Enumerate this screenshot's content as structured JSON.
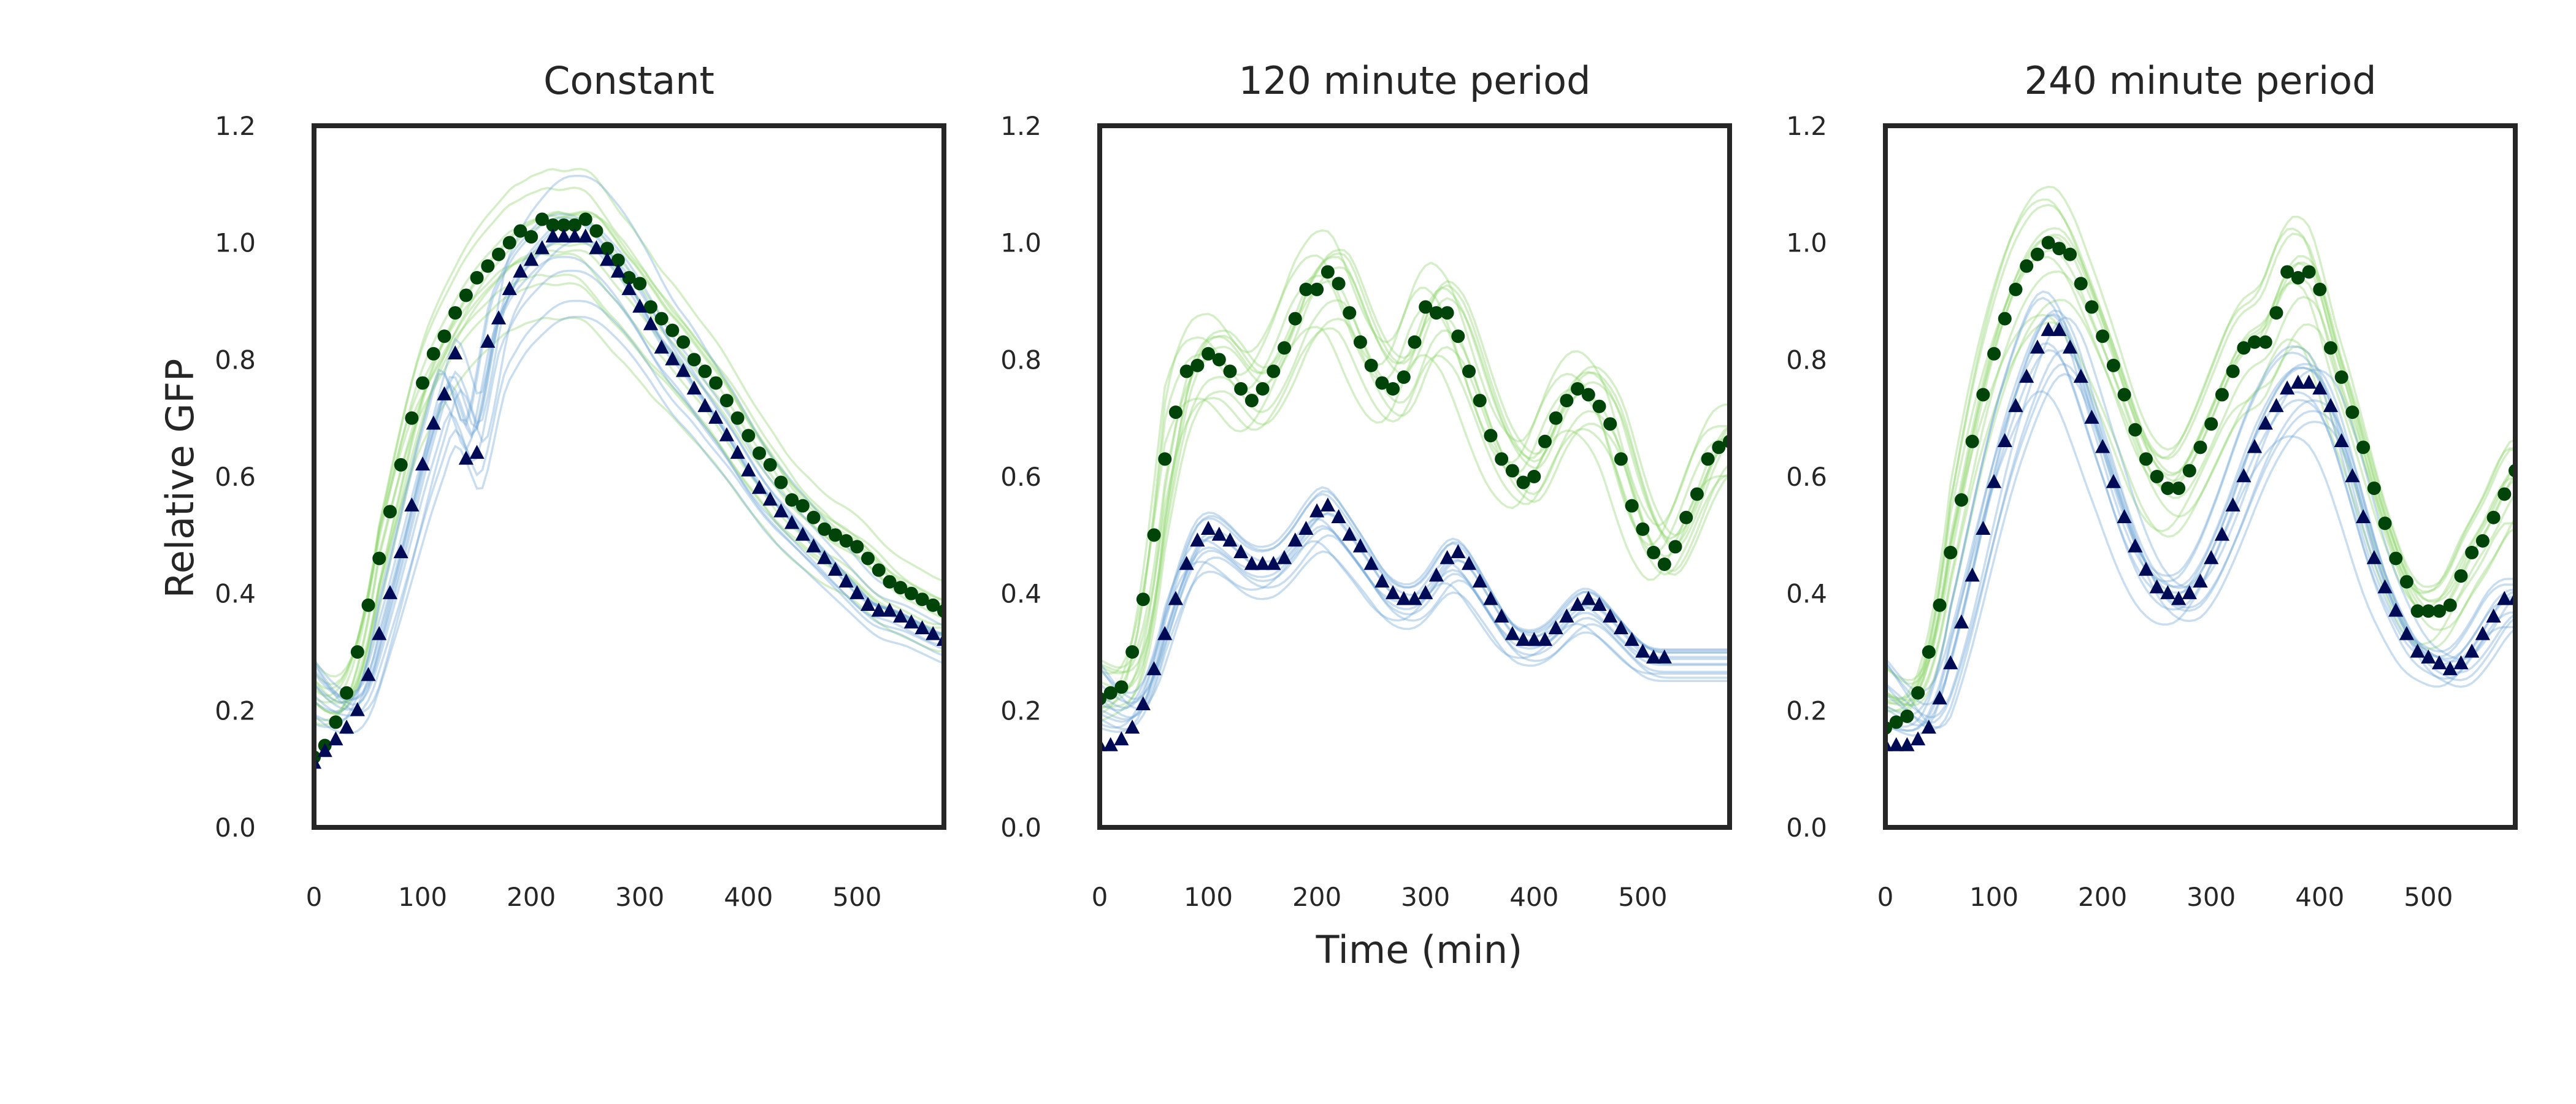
{
  "figure": {
    "xlabel": "Time (min)",
    "ylabel": "Relative GFP"
  },
  "chart_data": [
    {
      "type": "line",
      "title": "Constant",
      "xlim": [
        0,
        580
      ],
      "ylim": [
        0.0,
        1.2
      ],
      "xticks": [
        "0",
        "100",
        "200",
        "300",
        "400",
        "500"
      ],
      "yticks": [
        "0.0",
        "0.2",
        "0.4",
        "0.6",
        "0.8",
        "1.0",
        "1.2"
      ],
      "grid": false,
      "series": [
        {
          "marker": "circle",
          "color": "#00440a",
          "x": [
            0,
            10,
            20,
            30,
            40,
            50,
            60,
            70,
            80,
            90,
            100,
            110,
            120,
            130,
            140,
            150,
            160,
            170,
            180,
            190,
            200,
            210,
            220,
            230,
            240,
            250,
            260,
            270,
            280,
            290,
            300,
            310,
            320,
            330,
            340,
            350,
            360,
            370,
            380,
            390,
            400,
            410,
            420,
            430,
            440,
            450,
            460,
            470,
            480,
            490,
            500,
            510,
            520,
            530,
            540,
            550,
            560,
            570,
            580
          ],
          "y": [
            0.12,
            0.14,
            0.18,
            0.23,
            0.3,
            0.38,
            0.46,
            0.54,
            0.62,
            0.7,
            0.76,
            0.81,
            0.84,
            0.88,
            0.91,
            0.94,
            0.96,
            0.98,
            1.0,
            1.02,
            1.01,
            1.04,
            1.03,
            1.03,
            1.03,
            1.04,
            1.02,
            0.99,
            0.97,
            0.94,
            0.93,
            0.89,
            0.87,
            0.85,
            0.83,
            0.8,
            0.78,
            0.76,
            0.73,
            0.7,
            0.67,
            0.64,
            0.62,
            0.59,
            0.56,
            0.55,
            0.53,
            0.51,
            0.5,
            0.49,
            0.48,
            0.46,
            0.44,
            0.42,
            0.41,
            0.4,
            0.39,
            0.38,
            0.37
          ]
        },
        {
          "marker": "triangle",
          "color": "#000a55",
          "x": [
            0,
            10,
            20,
            30,
            40,
            50,
            60,
            70,
            80,
            90,
            100,
            110,
            120,
            130,
            140,
            150,
            160,
            170,
            180,
            190,
            200,
            210,
            220,
            230,
            240,
            250,
            260,
            270,
            280,
            290,
            300,
            310,
            320,
            330,
            340,
            350,
            360,
            370,
            380,
            390,
            400,
            410,
            420,
            430,
            440,
            450,
            460,
            470,
            480,
            490,
            500,
            510,
            520,
            530,
            540,
            550,
            560,
            570,
            580
          ],
          "y": [
            0.11,
            0.13,
            0.15,
            0.17,
            0.2,
            0.26,
            0.33,
            0.4,
            0.47,
            0.55,
            0.62,
            0.69,
            0.74,
            0.81,
            0.63,
            0.64,
            0.83,
            0.87,
            0.92,
            0.95,
            0.97,
            0.99,
            1.01,
            1.01,
            1.01,
            1.01,
            0.99,
            0.97,
            0.95,
            0.92,
            0.89,
            0.86,
            0.82,
            0.8,
            0.78,
            0.75,
            0.72,
            0.7,
            0.67,
            0.64,
            0.61,
            0.58,
            0.56,
            0.54,
            0.52,
            0.5,
            0.48,
            0.46,
            0.44,
            0.42,
            0.4,
            0.38,
            0.37,
            0.37,
            0.36,
            0.35,
            0.34,
            0.33,
            0.32
          ]
        }
      ]
    },
    {
      "type": "line",
      "title": "120 minute period",
      "xlim": [
        0,
        580
      ],
      "ylim": [
        0.0,
        1.2
      ],
      "xticks": [
        "0",
        "100",
        "200",
        "300",
        "400",
        "500"
      ],
      "yticks": [
        "0.0",
        "0.2",
        "0.4",
        "0.6",
        "0.8",
        "1.0",
        "1.2"
      ],
      "grid": false,
      "series": [
        {
          "marker": "circle",
          "color": "#00440a",
          "x": [
            0,
            10,
            20,
            30,
            40,
            50,
            60,
            70,
            80,
            90,
            100,
            110,
            120,
            130,
            140,
            150,
            160,
            170,
            180,
            190,
            200,
            210,
            220,
            230,
            240,
            250,
            260,
            270,
            280,
            290,
            300,
            310,
            320,
            330,
            340,
            350,
            360,
            370,
            380,
            390,
            400,
            410,
            420,
            430,
            440,
            450,
            460,
            470,
            480,
            490,
            500,
            510,
            520,
            530,
            540,
            550,
            560,
            570,
            580
          ],
          "y": [
            0.22,
            0.23,
            0.24,
            0.3,
            0.39,
            0.5,
            0.63,
            0.71,
            0.78,
            0.79,
            0.81,
            0.8,
            0.78,
            0.75,
            0.73,
            0.75,
            0.78,
            0.82,
            0.87,
            0.92,
            0.92,
            0.95,
            0.93,
            0.88,
            0.83,
            0.79,
            0.76,
            0.75,
            0.77,
            0.83,
            0.89,
            0.88,
            0.88,
            0.84,
            0.78,
            0.73,
            0.67,
            0.63,
            0.61,
            0.59,
            0.6,
            0.66,
            0.7,
            0.73,
            0.75,
            0.74,
            0.72,
            0.69,
            0.63,
            0.55,
            0.51,
            0.47,
            0.45,
            0.48,
            0.53,
            0.57,
            0.63,
            0.65,
            0.66
          ]
        },
        {
          "marker": "triangle",
          "color": "#000a55",
          "x": [
            0,
            10,
            20,
            30,
            40,
            50,
            60,
            70,
            80,
            90,
            100,
            110,
            120,
            130,
            140,
            150,
            160,
            170,
            180,
            190,
            200,
            210,
            220,
            230,
            240,
            250,
            260,
            270,
            280,
            290,
            300,
            310,
            320,
            330,
            340,
            350,
            360,
            370,
            380,
            390,
            400,
            410,
            420,
            430,
            440,
            450,
            460,
            470,
            480,
            490,
            500,
            510,
            520
          ],
          "y": [
            0.14,
            0.14,
            0.15,
            0.17,
            0.21,
            0.27,
            0.33,
            0.39,
            0.45,
            0.49,
            0.51,
            0.5,
            0.49,
            0.47,
            0.45,
            0.45,
            0.45,
            0.46,
            0.49,
            0.51,
            0.54,
            0.55,
            0.53,
            0.5,
            0.48,
            0.45,
            0.42,
            0.4,
            0.39,
            0.39,
            0.4,
            0.43,
            0.46,
            0.47,
            0.45,
            0.42,
            0.39,
            0.36,
            0.33,
            0.32,
            0.32,
            0.32,
            0.34,
            0.36,
            0.38,
            0.39,
            0.38,
            0.36,
            0.34,
            0.32,
            0.3,
            0.29,
            0.29
          ]
        }
      ]
    },
    {
      "type": "line",
      "title": "240 minute period",
      "xlim": [
        0,
        580
      ],
      "ylim": [
        0.0,
        1.2
      ],
      "xticks": [
        "0",
        "100",
        "200",
        "300",
        "400",
        "500"
      ],
      "yticks": [
        "0.0",
        "0.2",
        "0.4",
        "0.6",
        "0.8",
        "1.0",
        "1.2"
      ],
      "grid": false,
      "series": [
        {
          "marker": "circle",
          "color": "#00440a",
          "x": [
            0,
            10,
            20,
            30,
            40,
            50,
            60,
            70,
            80,
            90,
            100,
            110,
            120,
            130,
            140,
            150,
            160,
            170,
            180,
            190,
            200,
            210,
            220,
            230,
            240,
            250,
            260,
            270,
            280,
            290,
            300,
            310,
            320,
            330,
            340,
            350,
            360,
            370,
            380,
            390,
            400,
            410,
            420,
            430,
            440,
            450,
            460,
            470,
            480,
            490,
            500,
            510,
            520,
            530,
            540,
            550,
            560,
            570,
            580
          ],
          "y": [
            0.17,
            0.18,
            0.19,
            0.23,
            0.3,
            0.38,
            0.47,
            0.56,
            0.66,
            0.74,
            0.81,
            0.87,
            0.92,
            0.96,
            0.98,
            1.0,
            0.99,
            0.98,
            0.93,
            0.89,
            0.84,
            0.79,
            0.74,
            0.68,
            0.63,
            0.6,
            0.58,
            0.58,
            0.61,
            0.65,
            0.69,
            0.74,
            0.78,
            0.82,
            0.83,
            0.83,
            0.88,
            0.95,
            0.94,
            0.95,
            0.92,
            0.82,
            0.77,
            0.71,
            0.65,
            0.58,
            0.52,
            0.46,
            0.42,
            0.37,
            0.37,
            0.37,
            0.38,
            0.43,
            0.47,
            0.49,
            0.53,
            0.57,
            0.61
          ]
        },
        {
          "marker": "triangle",
          "color": "#000a55",
          "x": [
            0,
            10,
            20,
            30,
            40,
            50,
            60,
            70,
            80,
            90,
            100,
            110,
            120,
            130,
            140,
            150,
            160,
            170,
            180,
            190,
            200,
            210,
            220,
            230,
            240,
            250,
            260,
            270,
            280,
            290,
            300,
            310,
            320,
            330,
            340,
            350,
            360,
            370,
            380,
            390,
            400,
            410,
            420,
            430,
            440,
            450,
            460,
            470,
            480,
            490,
            500,
            510,
            520,
            530,
            540,
            550,
            560,
            570,
            580
          ],
          "y": [
            0.14,
            0.14,
            0.14,
            0.15,
            0.17,
            0.22,
            0.28,
            0.35,
            0.43,
            0.51,
            0.59,
            0.66,
            0.72,
            0.77,
            0.82,
            0.85,
            0.85,
            0.82,
            0.77,
            0.7,
            0.65,
            0.59,
            0.53,
            0.48,
            0.44,
            0.41,
            0.4,
            0.39,
            0.4,
            0.42,
            0.46,
            0.5,
            0.55,
            0.6,
            0.65,
            0.69,
            0.72,
            0.75,
            0.76,
            0.76,
            0.75,
            0.72,
            0.66,
            0.6,
            0.53,
            0.46,
            0.41,
            0.37,
            0.33,
            0.3,
            0.29,
            0.28,
            0.27,
            0.28,
            0.3,
            0.33,
            0.36,
            0.39,
            0.39
          ]
        }
      ]
    }
  ],
  "model_curves": {
    "green_color": "#8fd46b",
    "blue_color": "#6fa6d6"
  }
}
